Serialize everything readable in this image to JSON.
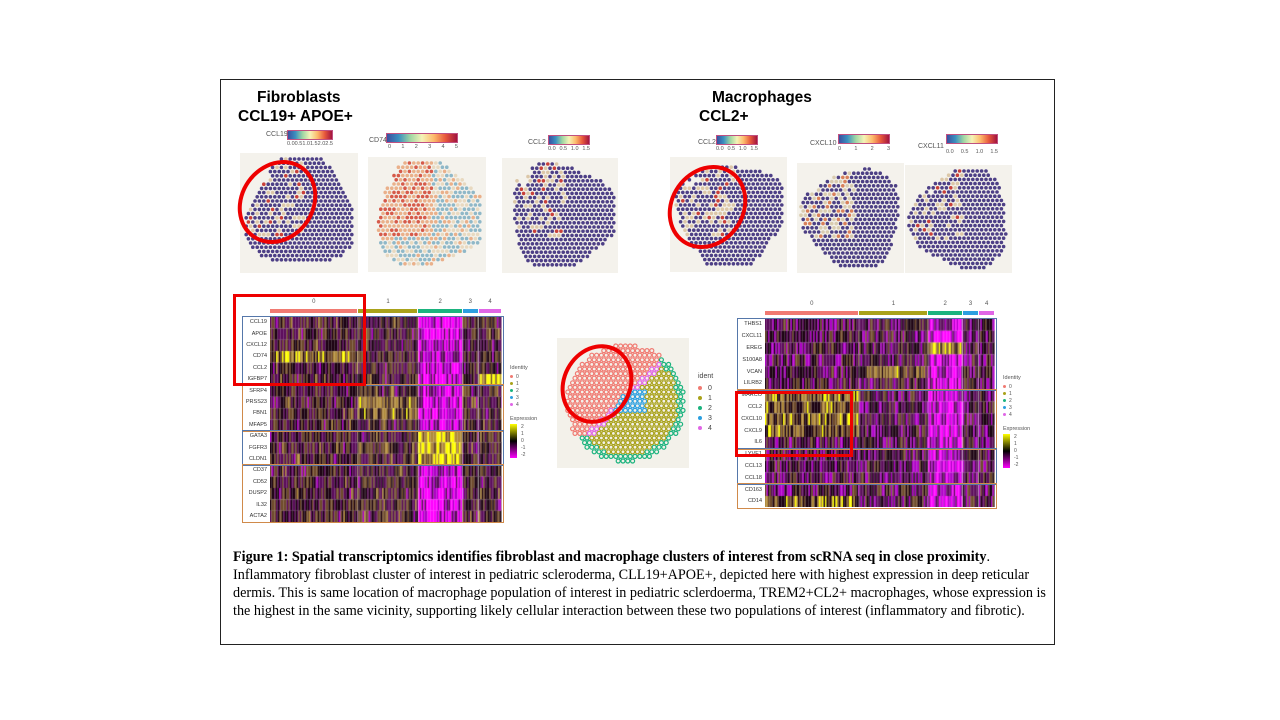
{
  "figure": {
    "headers": {
      "fibroblasts_title": "Fibroblasts",
      "fibroblasts_subtitle": "CCL19+ APOE+",
      "macrophages_title": "Macrophages",
      "macrophages_subtitle": "CCL2+"
    },
    "spatial_panels": [
      {
        "gene": "CCL19",
        "ticks": [
          "0.0",
          "0.5",
          "1.0",
          "1.5",
          "2.0",
          "2.5"
        ],
        "circled": true,
        "pattern": "low"
      },
      {
        "gene": "CD74",
        "ticks": [
          "0",
          "1",
          "2",
          "3",
          "4",
          "5"
        ],
        "circled": false,
        "pattern": "high"
      },
      {
        "gene": "CCL2",
        "ticks": [
          "0.0",
          "0.5",
          "1.0",
          "1.5"
        ],
        "circled": false,
        "pattern": "low"
      },
      {
        "gene": "CCL2",
        "ticks": [
          "0.0",
          "0.5",
          "1.0",
          "1.5"
        ],
        "circled": true,
        "pattern": "low"
      },
      {
        "gene": "CXCL10",
        "ticks": [
          "0",
          "1",
          "2",
          "3"
        ],
        "circled": false,
        "pattern": "mid"
      },
      {
        "gene": "CXCL11",
        "ticks": [
          "0.0",
          "0.5",
          "1.0",
          "1.5"
        ],
        "circled": false,
        "pattern": "low"
      }
    ],
    "cluster_colors": {
      "0": "#f07a72",
      "1": "#a9a21a",
      "2": "#1bb37e",
      "3": "#2b9fe0",
      "4": "#e066e6"
    },
    "left_heatmap": {
      "clusters": [
        "0",
        "1",
        "2",
        "3",
        "4"
      ],
      "cluster_fractions": [
        0.38,
        0.26,
        0.19,
        0.07,
        0.1
      ],
      "gene_groups": [
        {
          "color": "#5577aa",
          "genes": [
            "CCL19",
            "APOE",
            "CXCL12",
            "CD74",
            "CCL2",
            "IGFBP7"
          ]
        },
        {
          "color": "#d08a4a",
          "genes": [
            "SFRP4",
            "PRSS23",
            "FBN1",
            "MFAP5"
          ]
        },
        {
          "color": "#5577aa",
          "genes": [
            "GATA3",
            "FGFR3",
            "CLDN1"
          ]
        },
        {
          "color": "#d08a4a",
          "genes": [
            "CD37",
            "CD52",
            "DUSP2",
            "IL32",
            "ACTA2"
          ]
        }
      ],
      "highlight_box_rows": 6,
      "legend": {
        "identity_title": "Identity",
        "identity_items": [
          "0",
          "1",
          "2",
          "3",
          "4"
        ],
        "expression_title": "Expression",
        "expression_ticks": [
          "2",
          "1",
          "0",
          "-1",
          "-2"
        ]
      }
    },
    "cluster_map": {
      "legend_title": "ident",
      "items": [
        "0",
        "1",
        "2",
        "3",
        "4"
      ]
    },
    "right_heatmap": {
      "clusters": [
        "0",
        "1",
        "2",
        "3",
        "4"
      ],
      "cluster_fractions": [
        0.41,
        0.3,
        0.15,
        0.07,
        0.07
      ],
      "gene_groups": [
        {
          "color": "#5577aa",
          "genes": [
            "THBS1",
            "CXCL11",
            "EREG",
            "S100A8",
            "VCAN",
            "LILRB2"
          ]
        },
        {
          "color": "#d08a4a",
          "genes": [
            "MARCO",
            "CCL2",
            "CXCL10",
            "CXCL9",
            "IL6"
          ]
        },
        {
          "color": "#5577aa",
          "genes": [
            "LYVE1",
            "CCL13",
            "CCL18"
          ]
        },
        {
          "color": "#d08a4a",
          "genes": [
            "CD163",
            "CD14"
          ]
        }
      ],
      "legend": {
        "identity_title": "Identity",
        "identity_items": [
          "0",
          "1",
          "2",
          "3",
          "4"
        ],
        "expression_title": "Expression",
        "expression_ticks": [
          "2",
          "1",
          "0",
          "-1",
          "-2"
        ]
      }
    },
    "caption": {
      "bold": "Figure 1: Spatial transcriptomics identifies fibroblast and macrophage clusters of interest from scRNA seq in close proximity",
      "body": ".  Inflammatory fibroblast cluster of interest in pediatric scleroderma, CLL19+APOE+, depicted here with highest expression in deep reticular dermis.  This is same location of macrophage population of interest in pediatric sclerdoerma, TREM2+CL2+ macrophages, whose expression is the highest in the same vicinity, supporting likely cellular interaction between these two populations of interest (inflammatory and fibrotic)."
    }
  }
}
